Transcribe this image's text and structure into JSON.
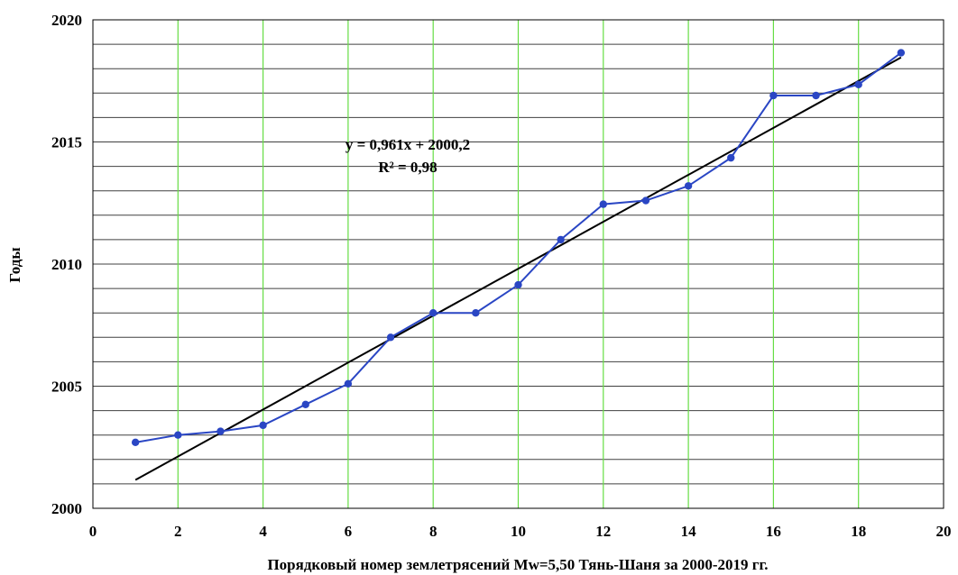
{
  "chart_data": {
    "type": "scatter",
    "title": "",
    "xlabel": "Порядковый номер землетрясений  Mw=5,50 Тянь-Шаня за 2000-2019 гг.",
    "ylabel": "Годы",
    "xlim": [
      0,
      20
    ],
    "ylim": [
      2000,
      2020
    ],
    "x_ticks": [
      "0",
      "2",
      "4",
      "6",
      "8",
      "10",
      "12",
      "14",
      "16",
      "18",
      "20"
    ],
    "y_ticks": [
      "2000",
      "2005",
      "2010",
      "2015",
      "2020"
    ],
    "grid": true,
    "series": [
      {
        "values_x": [
          1,
          2,
          3,
          4,
          5,
          6,
          7,
          8,
          9,
          10,
          11,
          12,
          13,
          14,
          15,
          16,
          17,
          18,
          19
        ],
        "values_y": [
          2002.7,
          2003.0,
          2003.15,
          2003.4,
          2004.25,
          2005.1,
          2007.0,
          2008.0,
          2008.0,
          2009.15,
          2011.0,
          2012.45,
          2012.6,
          2013.2,
          2014.35,
          2016.9,
          2016.9,
          2017.35,
          2018.65
        ]
      }
    ],
    "trendline": {
      "type": "linear",
      "slope": 0.961,
      "intercept": 2000.2,
      "x_range": [
        1,
        19
      ],
      "equation_label": "y = 0,961x + 2000,2",
      "r2_label": "R² = 0,98"
    },
    "colors": {
      "series": "#2a46c4",
      "trendline": "#000000",
      "major_grid": "#66dd44",
      "minor_grid": "#404040",
      "axis": "#000000"
    }
  }
}
